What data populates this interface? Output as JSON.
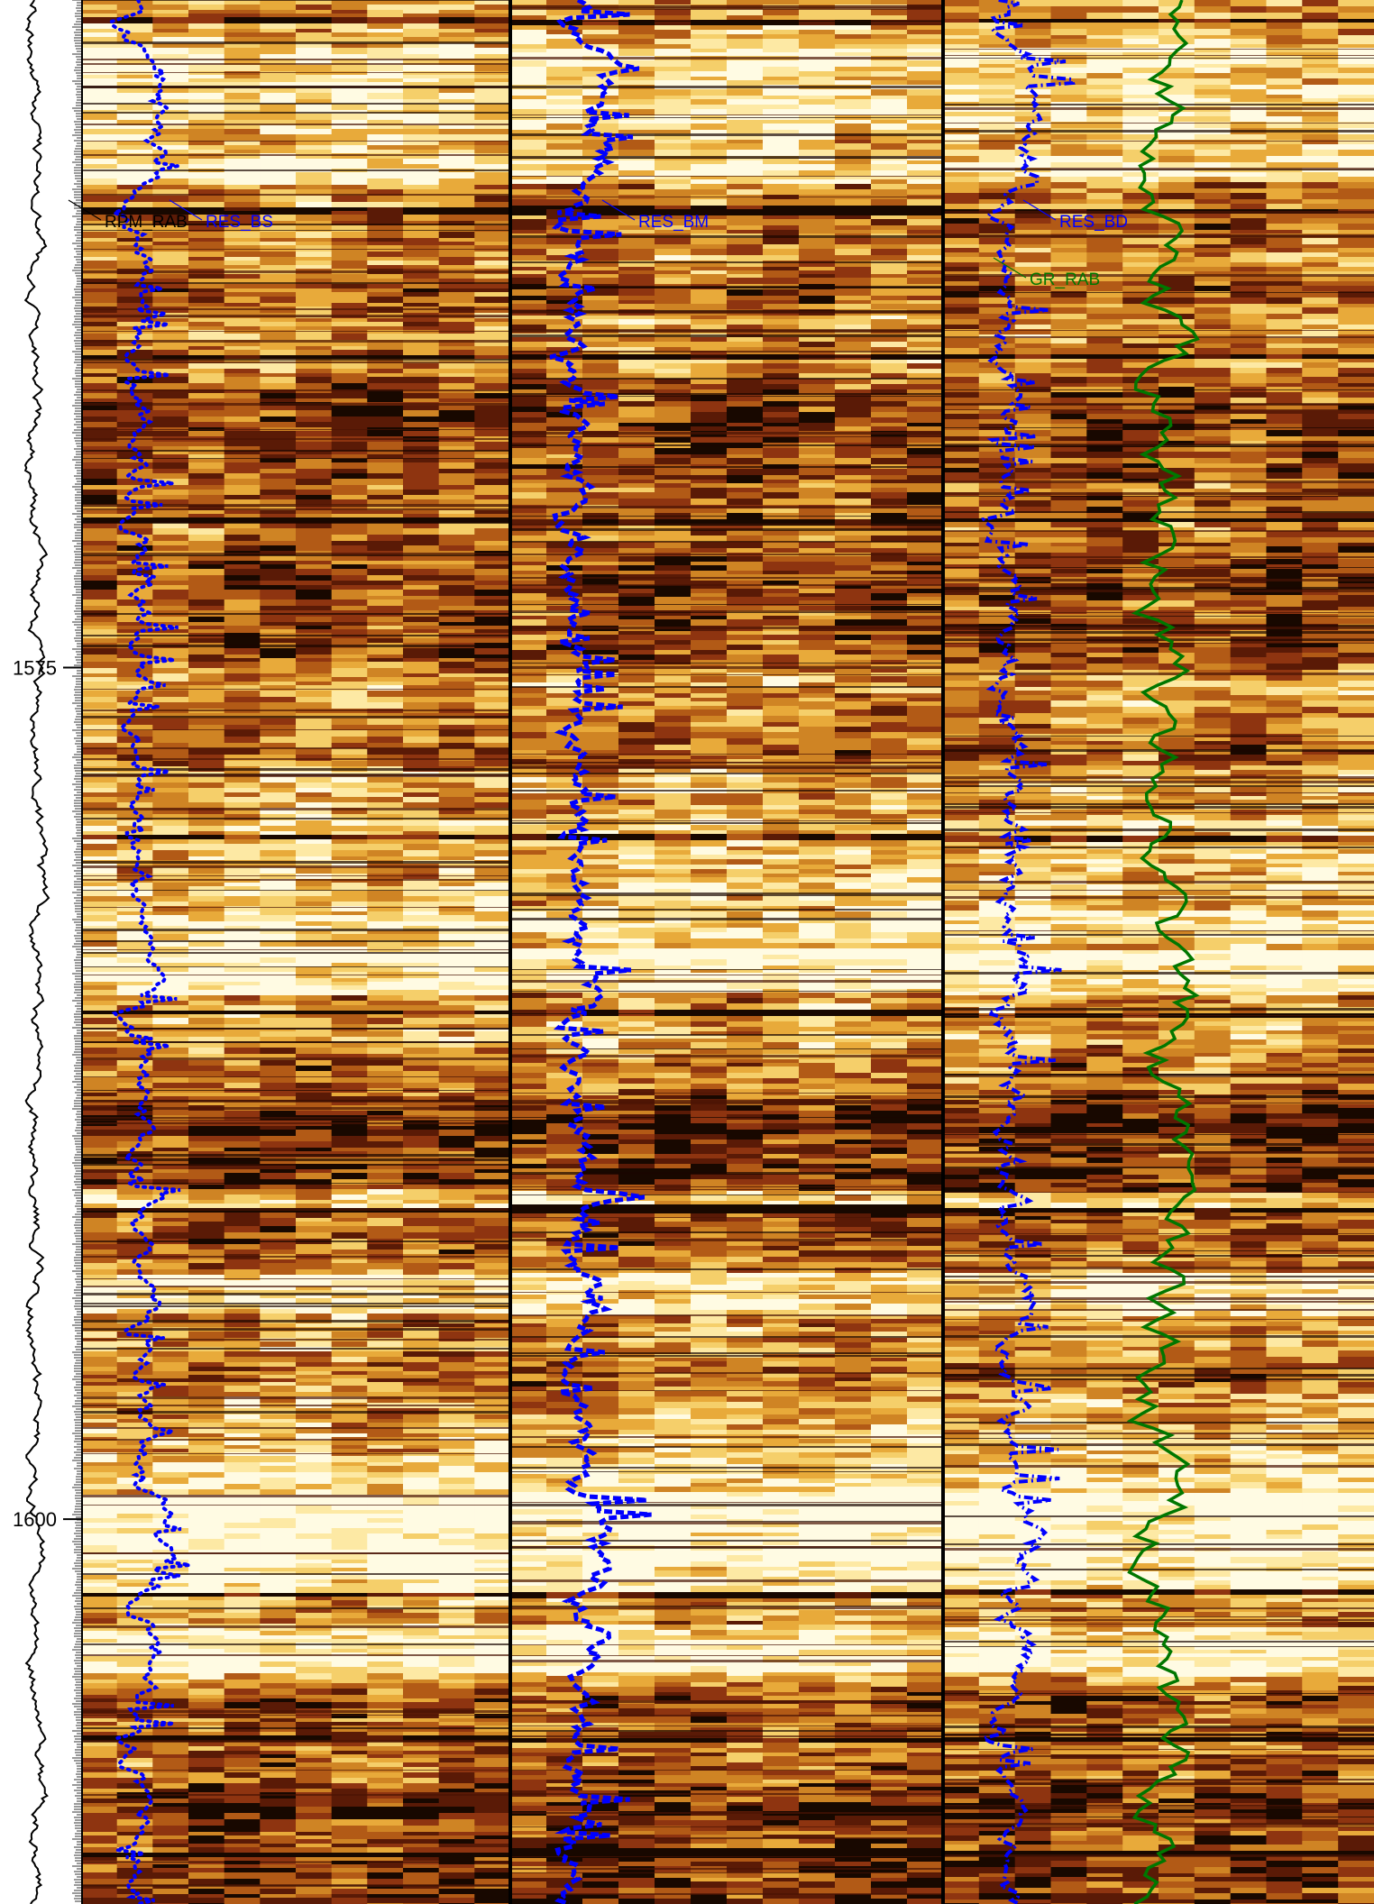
{
  "chart_data": {
    "type": "heatmap",
    "description_axis": "depth",
    "depth_ticks": [
      {
        "label": "1575",
        "value": 1575
      },
      {
        "label": "1600",
        "value": 1600
      }
    ],
    "depth_range": [
      1555.4,
      1611.3
    ],
    "tracks": [
      {
        "id": "rpm",
        "curves": [
          {
            "name": "RPM_RAB",
            "color": "#000000",
            "style": "solid"
          }
        ]
      },
      {
        "id": "image-shallow",
        "curves": [
          {
            "name": "RES_BS",
            "color": "#0000ff",
            "style": "dotted"
          }
        ]
      },
      {
        "id": "image-medium",
        "curves": [
          {
            "name": "RES_BM",
            "color": "#0000ff",
            "style": "dashed"
          }
        ]
      },
      {
        "id": "image-deep",
        "curves": [
          {
            "name": "RES_BD",
            "color": "#0000ff",
            "style": "dash-dot"
          },
          {
            "name": "GR_RAB",
            "color": "#007700",
            "style": "solid"
          }
        ]
      }
    ],
    "colors": {
      "image_palette": [
        "#180800",
        "#5a1a06",
        "#8e3410",
        "#b25a16",
        "#cf8424",
        "#e8aa3a",
        "#f5cf6a",
        "#fde9a4",
        "#fffbe3"
      ],
      "resistivity": "#0000ff",
      "gamma": "#007700",
      "rpm": "#000000"
    }
  }
}
